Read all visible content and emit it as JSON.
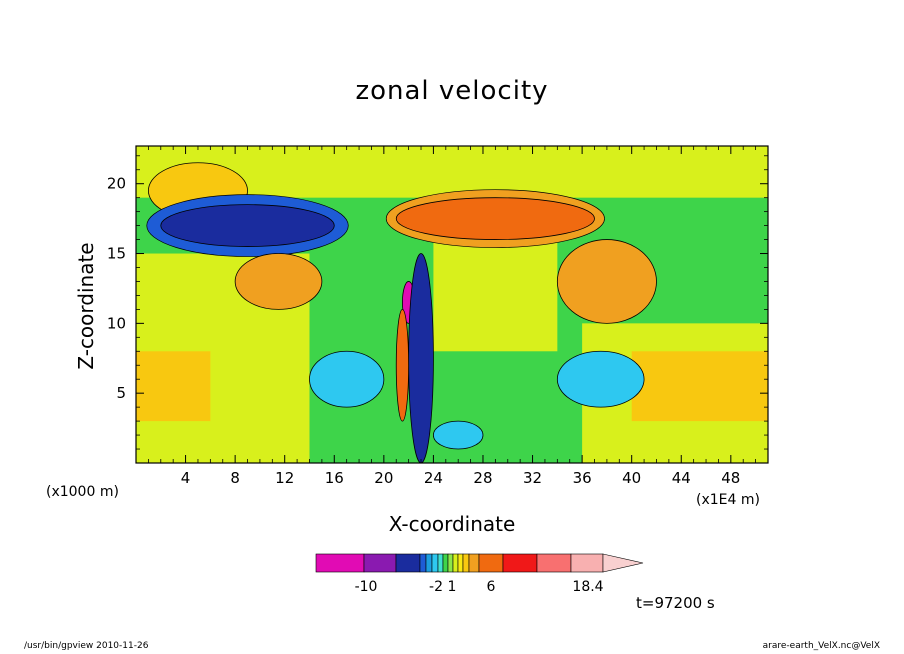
{
  "chart_data": {
    "type": "heatmap",
    "title": "zonal velocity",
    "xlabel": "X-coordinate",
    "ylabel": "Z-coordinate",
    "x_unit_label": "(x1000 m)",
    "x_scale_label": "(x1E4 m)",
    "x_ticks": [
      "4",
      "8",
      "12",
      "16",
      "20",
      "24",
      "28",
      "32",
      "36",
      "40",
      "44",
      "48"
    ],
    "y_ticks": [
      "5",
      "10",
      "15",
      "20"
    ],
    "xlim": [
      0,
      51
    ],
    "ylim": [
      0,
      22.7
    ],
    "colorbar": {
      "levels": [
        -18,
        -14,
        -10,
        -6,
        -2,
        -1,
        -0.5,
        0.5,
        1,
        1.5,
        2,
        3,
        4,
        6,
        10,
        14,
        18.4
      ],
      "colors": [
        "#e10bb4",
        "#8a1ab0",
        "#1a2c9e",
        "#1e5cd6",
        "#1c9ee0",
        "#2ec8f0",
        "#40e0d0",
        "#3ed44a",
        "#8ee64a",
        "#d8f01c",
        "#f8e814",
        "#f8c810",
        "#f0a020",
        "#f06a10",
        "#f01818",
        "#f87070",
        "#f8b0b0"
      ],
      "labels": [
        "-10",
        "-2",
        "1",
        "6",
        "18.4"
      ]
    },
    "time_label": "t=97200 s",
    "regions": [
      {
        "level": "positive-weak",
        "x": [
          1,
          9
        ],
        "z": [
          17.5,
          21.5
        ]
      },
      {
        "level": "strong-negative",
        "x": [
          2,
          16
        ],
        "z": [
          15.5,
          18.5
        ]
      },
      {
        "level": "positive-strong",
        "x": [
          21,
          37
        ],
        "z": [
          16,
          19
        ]
      },
      {
        "level": "negative-core",
        "x": [
          21.5,
          22.5
        ],
        "z": [
          10,
          13
        ]
      },
      {
        "level": "negative-band",
        "x": [
          22,
          24
        ],
        "z": [
          0,
          15
        ]
      },
      {
        "level": "positive-band",
        "x": [
          21,
          22
        ],
        "z": [
          3,
          11
        ]
      },
      {
        "level": "positive-moderate",
        "x": [
          34,
          42
        ],
        "z": [
          10,
          16
        ]
      },
      {
        "level": "positive-moderate",
        "x": [
          8,
          15
        ],
        "z": [
          11,
          15
        ]
      },
      {
        "level": "negative-moderate",
        "x": [
          14,
          20
        ],
        "z": [
          4,
          8
        ]
      },
      {
        "level": "negative-moderate",
        "x": [
          34,
          41
        ],
        "z": [
          4,
          8
        ]
      },
      {
        "level": "negative-moderate",
        "x": [
          24,
          28
        ],
        "z": [
          1,
          3
        ]
      }
    ]
  },
  "footer": {
    "left": "/usr/bin/gpview   2010-11-26",
    "right": "arare-earth_VelX.nc@VelX"
  }
}
